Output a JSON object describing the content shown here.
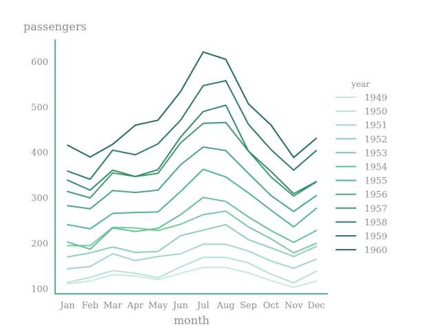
{
  "chart_data": {
    "type": "line",
    "xlabel": "month",
    "ylabel": "passengers",
    "legend_title": "year",
    "legend_position": "right",
    "grid": false,
    "ylim": [
      90,
      650
    ],
    "y_ticks": [
      100,
      200,
      300,
      400,
      500,
      600
    ],
    "categories": [
      "Jan",
      "Feb",
      "Mar",
      "Apr",
      "May",
      "Jun",
      "Jul",
      "Aug",
      "Sep",
      "Oct",
      "Nov",
      "Dec"
    ],
    "series": [
      {
        "name": "1949",
        "color": "#c7eadb",
        "values": [
          112,
          118,
          132,
          129,
          121,
          135,
          148,
          148,
          136,
          119,
          104,
          118
        ]
      },
      {
        "name": "1950",
        "color": "#b3e2cd",
        "values": [
          115,
          126,
          141,
          135,
          125,
          149,
          170,
          170,
          158,
          133,
          114,
          140
        ]
      },
      {
        "name": "1951",
        "color": "#9fdabf",
        "values": [
          145,
          150,
          178,
          163,
          172,
          178,
          199,
          199,
          184,
          162,
          146,
          166
        ]
      },
      {
        "name": "1952",
        "color": "#8ad2b0",
        "values": [
          171,
          180,
          193,
          181,
          183,
          218,
          230,
          242,
          209,
          191,
          172,
          194
        ]
      },
      {
        "name": "1953",
        "color": "#76caa2",
        "values": [
          196,
          196,
          236,
          235,
          229,
          243,
          264,
          272,
          237,
          211,
          180,
          201
        ]
      },
      {
        "name": "1954",
        "color": "#62c294",
        "values": [
          204,
          188,
          235,
          227,
          234,
          264,
          302,
          293,
          259,
          229,
          203,
          229
        ]
      },
      {
        "name": "1955",
        "color": "#4fb887",
        "values": [
          242,
          233,
          267,
          269,
          270,
          315,
          364,
          347,
          312,
          274,
          237,
          278
        ]
      },
      {
        "name": "1956",
        "color": "#45aa7c",
        "values": [
          284,
          277,
          317,
          313,
          318,
          374,
          413,
          405,
          355,
          306,
          271,
          306
        ]
      },
      {
        "name": "1957",
        "color": "#3c9c70",
        "values": [
          315,
          301,
          356,
          348,
          355,
          422,
          465,
          467,
          404,
          347,
          305,
          336
        ]
      },
      {
        "name": "1958",
        "color": "#338d65",
        "values": [
          340,
          318,
          362,
          348,
          363,
          435,
          491,
          505,
          404,
          359,
          310,
          337
        ]
      },
      {
        "name": "1959",
        "color": "#2a7e59",
        "values": [
          360,
          342,
          406,
          396,
          420,
          472,
          548,
          559,
          463,
          407,
          362,
          405
        ]
      },
      {
        "name": "1960",
        "color": "#22704e",
        "values": [
          417,
          391,
          419,
          461,
          472,
          535,
          622,
          606,
          508,
          461,
          390,
          432
        ]
      }
    ]
  }
}
